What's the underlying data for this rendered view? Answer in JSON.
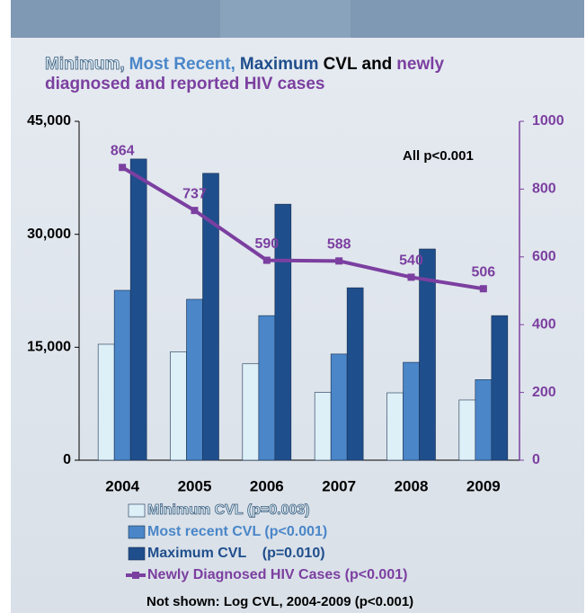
{
  "chart_data": {
    "type": "bar_line",
    "title_parts": [
      {
        "text": "Minimum,",
        "color": "#dff0f8"
      },
      {
        "text": "Most Recent,",
        "color": "#4a86c8"
      },
      {
        "text": "Maximum",
        "color": "#1f4e8c"
      },
      {
        "text": "CVL and",
        "color": "#000000"
      },
      {
        "text": "newly",
        "color": "#7b3fa0"
      },
      {
        "text": "diagnosed and reported HIV cases",
        "color": "#7b3fa0"
      }
    ],
    "annotation": "All p<0.001",
    "footnote": "Not shown: Log CVL, 2004-2009 (p<0.001)",
    "categories": [
      "2004",
      "2005",
      "2006",
      "2007",
      "2008",
      "2009"
    ],
    "series": [
      {
        "name": "Minimum CVL (p=0.003)",
        "color": "#ddf0f8",
        "values": [
          15400,
          14400,
          12800,
          9000,
          8950,
          8000
        ]
      },
      {
        "name": "Most recent CVL (p<0.001)",
        "color": "#4a86c8",
        "values": [
          22560,
          21370,
          19200,
          14100,
          13000,
          10700
        ]
      },
      {
        "name": "Maximum CVL    (p=0.010)",
        "color": "#1f4e8c",
        "values": [
          40000,
          38100,
          34000,
          22900,
          28050,
          19200
        ]
      },
      {
        "name": "Newly Diagnosed HIV Cases (p<0.001)",
        "color": "#7b3fa0",
        "axis": "y2",
        "values": [
          864,
          737,
          590,
          588,
          540,
          506
        ]
      }
    ],
    "ylim": [
      0,
      45000
    ],
    "yticks": [
      {
        "value": 0,
        "label": "0"
      },
      {
        "value": 15000,
        "label": "15,000"
      },
      {
        "value": 30000,
        "label": "30,000"
      },
      {
        "value": 45000,
        "label": "45,000"
      }
    ],
    "y2lim": [
      0,
      1000
    ],
    "y2ticks": [
      0,
      200,
      400,
      600,
      800,
      1000
    ]
  }
}
